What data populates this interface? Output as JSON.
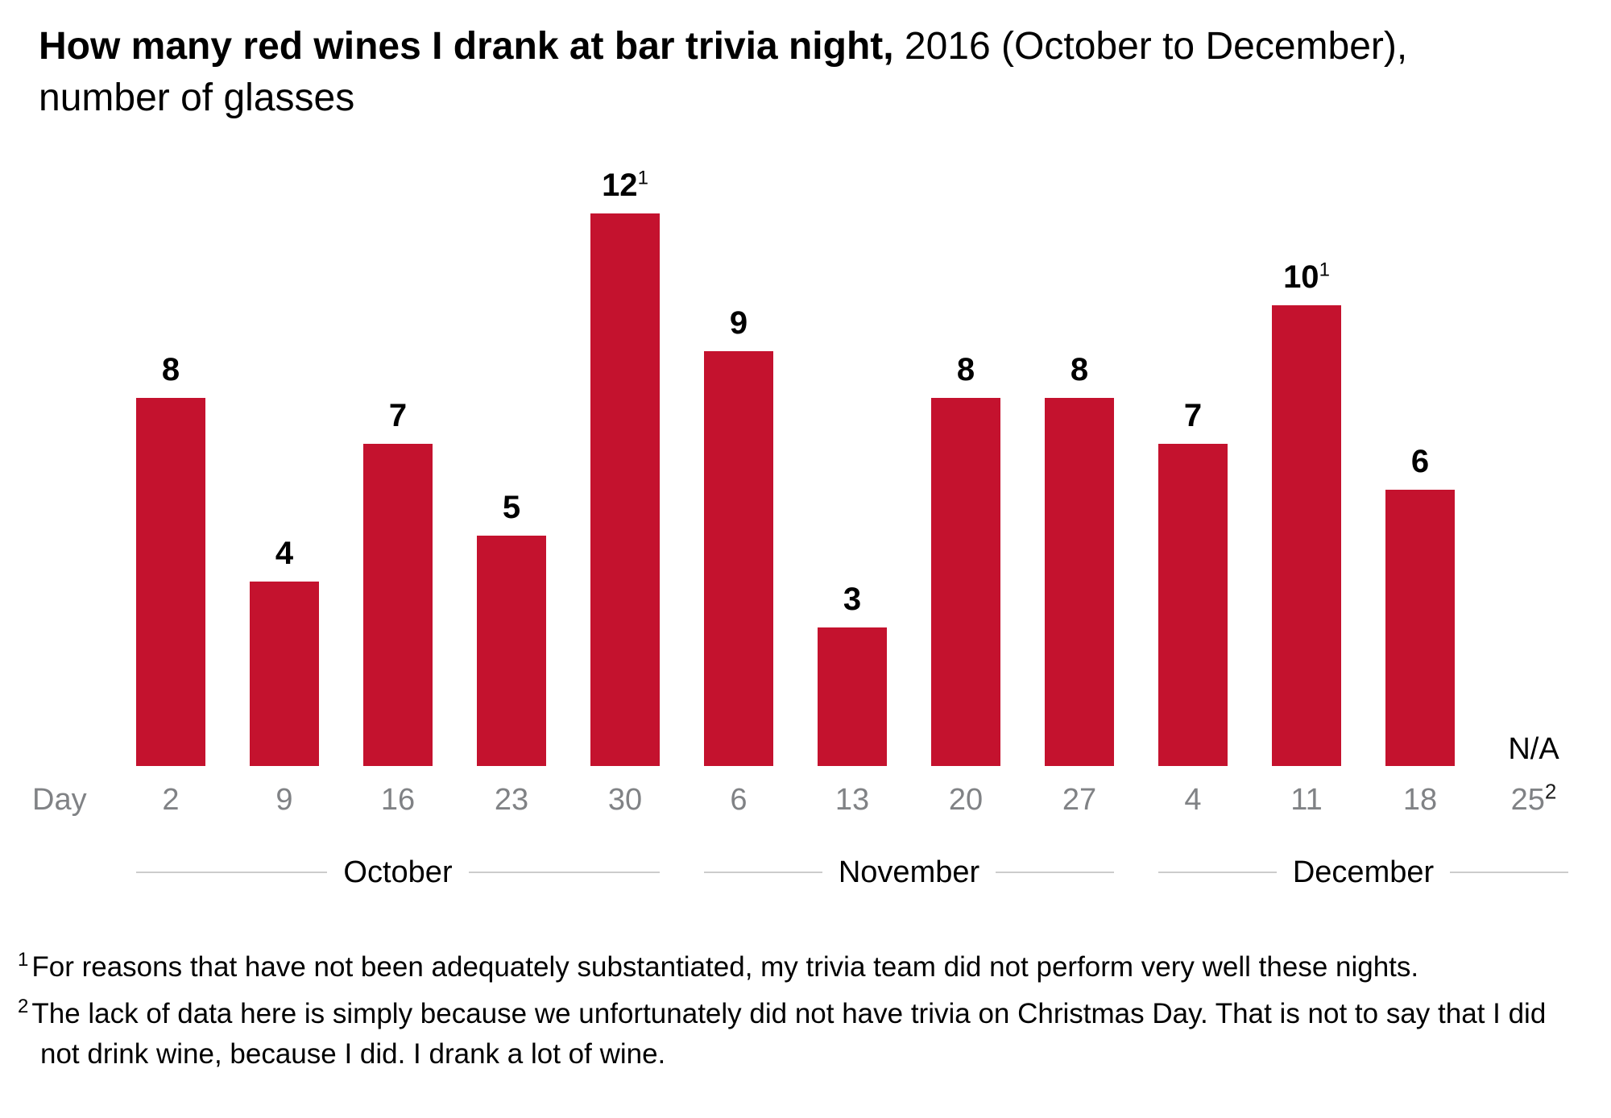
{
  "title": {
    "bold": "How many red wines I drank at bar trivia night,",
    "regular": " 2016 (October to December),",
    "line2": "number of glasses"
  },
  "axis": {
    "day_word": "Day"
  },
  "colors": {
    "bar": "#c4122e",
    "gray_text": "#808285",
    "line": "#cccccc",
    "black": "#000000"
  },
  "chart_data": {
    "type": "bar",
    "title": "How many red wines I drank at bar trivia night, 2016 (October to December), number of glasses",
    "xlabel": "Day",
    "ylabel": "number of glasses",
    "ylim": [
      0,
      12
    ],
    "grid": false,
    "legend": false,
    "bar_color": "#c4122e",
    "categories": [
      "Oct 2",
      "Oct 9",
      "Oct 16",
      "Oct 23",
      "Oct 30",
      "Nov 6",
      "Nov 13",
      "Nov 20",
      "Nov 27",
      "Dec 4",
      "Dec 11",
      "Dec 18",
      "Dec 25"
    ],
    "values": [
      8,
      4,
      7,
      5,
      12,
      9,
      3,
      8,
      8,
      7,
      10,
      6,
      null
    ],
    "points": [
      {
        "day": "2",
        "value": 8
      },
      {
        "day": "9",
        "value": 4
      },
      {
        "day": "16",
        "value": 7
      },
      {
        "day": "23",
        "value": 5
      },
      {
        "day": "30",
        "value": 12,
        "value_sup": "1"
      },
      {
        "day": "6",
        "value": 9
      },
      {
        "day": "13",
        "value": 3
      },
      {
        "day": "20",
        "value": 8
      },
      {
        "day": "27",
        "value": 8
      },
      {
        "day": "4",
        "value": 7
      },
      {
        "day": "11",
        "value": 10,
        "value_sup": "1"
      },
      {
        "day": "18",
        "value": 6
      },
      {
        "day": "25",
        "day_sup": "2",
        "value": null,
        "na_label": "N/A"
      }
    ],
    "month_groups": [
      {
        "label": "October",
        "from": 0,
        "to": 4
      },
      {
        "label": "November",
        "from": 5,
        "to": 8
      },
      {
        "label": "December",
        "from": 9,
        "to": 12
      }
    ]
  },
  "footnotes": [
    {
      "sup": "1",
      "text": "For reasons that have not been adequately substantiated, my trivia team did not perform very well these nights."
    },
    {
      "sup": "2",
      "text": "The lack of data here is simply because we unfortunately did not have trivia on Christmas Day. That is not to say that I did not drink wine, because I did. I drank a lot of wine."
    }
  ]
}
